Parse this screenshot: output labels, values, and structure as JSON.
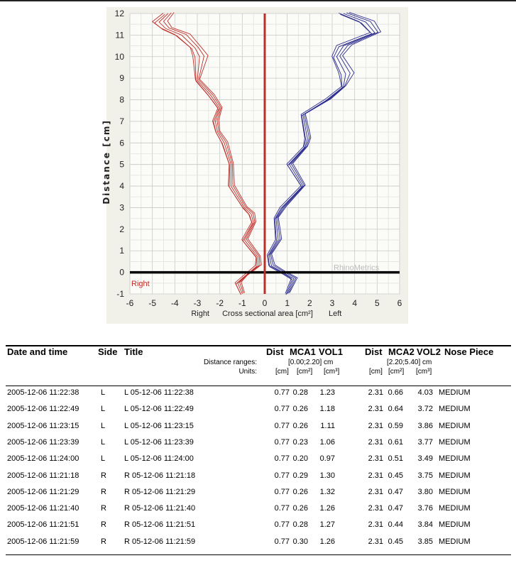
{
  "chart_data": {
    "type": "line",
    "xlabel": "Cross sectional area [cm²]",
    "xlabel_left": "Right",
    "xlabel_right": "Left",
    "ylabel": "Distance [cm]",
    "xlim": [
      -6,
      6
    ],
    "ylim": [
      -1,
      12
    ],
    "xticks": [
      "-6",
      "-5",
      "-4",
      "-3",
      "-2",
      "-1",
      "0",
      "1",
      "2",
      "3",
      "4",
      "5",
      "6"
    ],
    "yticks": [
      "-1",
      "0",
      "1",
      "2",
      "3",
      "4",
      "5",
      "6",
      "7",
      "8",
      "9",
      "10",
      "11",
      "12"
    ],
    "side_label": "Right",
    "watermark": "RhinoMetrics",
    "colors": {
      "right": "#c0302a",
      "left": "#2a2a8c",
      "center": "#b83028",
      "baseline": "#000000",
      "bg": "#f1f1ea"
    },
    "series": [
      {
        "name": "Right",
        "points": [
          [
            -1.0,
            -1
          ],
          [
            -1.2,
            -0.5
          ],
          [
            -0.9,
            -0.2
          ],
          [
            -0.3,
            0.3
          ],
          [
            -0.3,
            0.7
          ],
          [
            -0.9,
            1.5
          ],
          [
            -0.5,
            2.3
          ],
          [
            -0.6,
            2.7
          ],
          [
            -0.9,
            3.0
          ],
          [
            -1.5,
            4.0
          ],
          [
            -1.5,
            5.0
          ],
          [
            -1.8,
            6.0
          ],
          [
            -2.1,
            6.5
          ],
          [
            -2.2,
            7.0
          ],
          [
            -2.0,
            7.6
          ],
          [
            -2.4,
            8.2
          ],
          [
            -3.0,
            8.9
          ],
          [
            -2.9,
            10.0
          ],
          [
            -3.1,
            10.4
          ],
          [
            -3.7,
            11.0
          ],
          [
            -4.4,
            11.3
          ],
          [
            -4.7,
            11.6
          ],
          [
            -4.3,
            12.0
          ]
        ]
      },
      {
        "name": "Left",
        "points": [
          [
            1.0,
            -1
          ],
          [
            1.3,
            -0.3
          ],
          [
            0.8,
            0
          ],
          [
            0.3,
            0.3
          ],
          [
            0.2,
            0.8
          ],
          [
            0.6,
            1.5
          ],
          [
            0.5,
            2.5
          ],
          [
            0.8,
            3.0
          ],
          [
            1.7,
            4.0
          ],
          [
            1.1,
            5.0
          ],
          [
            1.8,
            5.8
          ],
          [
            1.9,
            6.2
          ],
          [
            1.7,
            7.3
          ],
          [
            2.8,
            8.0
          ],
          [
            3.5,
            8.6
          ],
          [
            3.6,
            9.2
          ],
          [
            3.2,
            10.0
          ],
          [
            3.5,
            10.5
          ],
          [
            4.9,
            11.1
          ],
          [
            4.5,
            11.6
          ],
          [
            3.5,
            12.0
          ]
        ]
      }
    ]
  },
  "table": {
    "headers": {
      "date": "Date and time",
      "side": "Side",
      "title": "Title",
      "dist1": "Dist",
      "mca1": "MCA1",
      "vol1": "VOL1",
      "dist2": "Dist",
      "mca2": "MCA2",
      "vol2": "VOL2",
      "nose": "Nose Piece"
    },
    "ranges_label": "Distance ranges:",
    "range1": "[0.00;2.20] cm",
    "range2": "[2.20;5.40] cm",
    "units_label": "Units:",
    "units": [
      "[cm]",
      "[cm²]",
      "[cm³]",
      "[cm]",
      "[cm²]",
      "[cm³]"
    ],
    "rows": [
      [
        "2005-12-06 11:22:38",
        "L",
        "L 05-12-06 11:22:38",
        "0.77",
        "0.28",
        "1.23",
        "2.31",
        "0.66",
        "4.03",
        "MEDIUM"
      ],
      [
        "2005-12-06 11:22:49",
        "L",
        "L 05-12-06 11:22:49",
        "0.77",
        "0.26",
        "1.18",
        "2.31",
        "0.64",
        "3.72",
        "MEDIUM"
      ],
      [
        "2005-12-06 11:23:15",
        "L",
        "L 05-12-06 11:23:15",
        "0.77",
        "0.26",
        "1.11",
        "2.31",
        "0.59",
        "3.86",
        "MEDIUM"
      ],
      [
        "2005-12-06 11:23:39",
        "L",
        "L 05-12-06 11:23:39",
        "0.77",
        "0.23",
        "1.06",
        "2.31",
        "0.61",
        "3.77",
        "MEDIUM"
      ],
      [
        "2005-12-06 11:24:00",
        "L",
        "L 05-12-06 11:24:00",
        "0.77",
        "0.20",
        "0.97",
        "2.31",
        "0.51",
        "3.49",
        "MEDIUM"
      ],
      [
        "2005-12-06 11:21:18",
        "R",
        "R 05-12-06 11:21:18",
        "0.77",
        "0.29",
        "1.30",
        "2.31",
        "0.45",
        "3.75",
        "MEDIUM"
      ],
      [
        "2005-12-06 11:21:29",
        "R",
        "R 05-12-06 11:21:29",
        "0.77",
        "0.26",
        "1.32",
        "2.31",
        "0.47",
        "3.80",
        "MEDIUM"
      ],
      [
        "2005-12-06 11:21:40",
        "R",
        "R 05-12-06 11:21:40",
        "0.77",
        "0.26",
        "1.26",
        "2.31",
        "0.47",
        "3.76",
        "MEDIUM"
      ],
      [
        "2005-12-06 11:21:51",
        "R",
        "R 05-12-06 11:21:51",
        "0.77",
        "0.28",
        "1.27",
        "2.31",
        "0.44",
        "3.84",
        "MEDIUM"
      ],
      [
        "2005-12-06 11:21:59",
        "R",
        "R 05-12-06 11:21:59",
        "0.77",
        "0.30",
        "1.26",
        "2.31",
        "0.45",
        "3.85",
        "MEDIUM"
      ]
    ]
  }
}
